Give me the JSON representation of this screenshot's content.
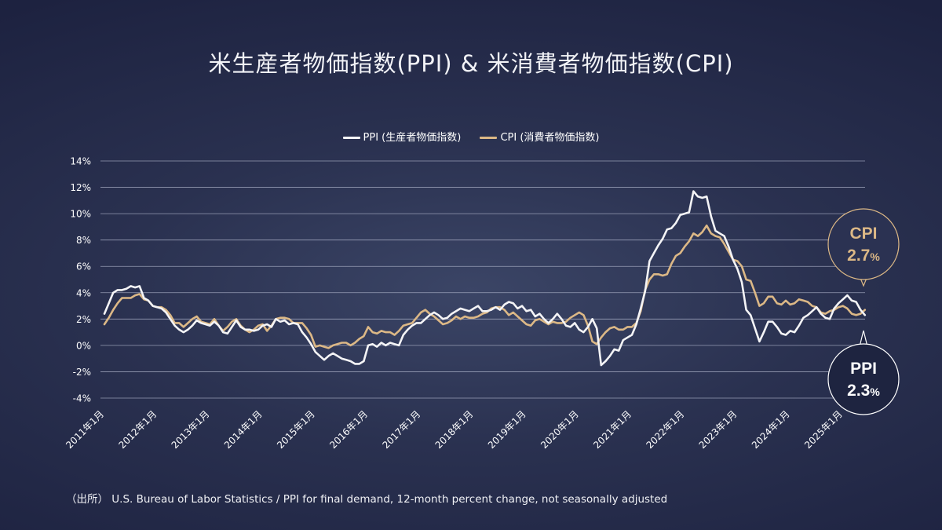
{
  "title": "米生産者物価指数(PPI) & 米消費者物価指数(CPI)",
  "legend": {
    "ppi_label": "PPI (生産者物価指数)",
    "cpi_label": "CPI (消費者物価指数)"
  },
  "colors": {
    "ppi": "#f4f4f6",
    "cpi": "#dcb886",
    "grid": "#b9bfd4"
  },
  "source": "（出所）  U.S. Bureau of Labor Statistics / PPI for final demand, 12-month percent change, not seasonally adjusted",
  "callouts": {
    "cpi": {
      "name": "CPI",
      "value": "2.7",
      "unit": "%"
    },
    "ppi": {
      "name": "PPI",
      "value": "2.3",
      "unit": "%"
    }
  },
  "chart_data": {
    "type": "line",
    "title": "米生産者物価指数(PPI) & 米消費者物価指数(CPI)",
    "ylim": [
      -4,
      14
    ],
    "y_ticks": [
      "14%",
      "12%",
      "10%",
      "8%",
      "6%",
      "4%",
      "2%",
      "0%",
      "-2%",
      "-4%"
    ],
    "x_ticks": [
      "2011年1月",
      "2012年1月",
      "2013年1月",
      "2014年1月",
      "2015年1月",
      "2016年1月",
      "2017年1月",
      "2018年1月",
      "2019年1月",
      "2020年1月",
      "2021年1月",
      "2022年1月",
      "2023年1月",
      "2024年1月",
      "2025年1月"
    ],
    "x_start": "2011-01",
    "frequency": "monthly",
    "grid": "horizontal",
    "legend_position": "top-center",
    "series": [
      {
        "name": "PPI (生産者物価指数)",
        "values": [
          2.4,
          3.2,
          4.0,
          4.2,
          4.2,
          4.3,
          4.5,
          4.4,
          4.5,
          3.6,
          3.4,
          3.0,
          2.9,
          2.8,
          2.5,
          2.0,
          1.5,
          1.2,
          1.0,
          1.2,
          1.5,
          1.9,
          1.7,
          1.6,
          1.5,
          1.8,
          1.5,
          1.0,
          0.9,
          1.4,
          1.9,
          1.4,
          1.2,
          1.2,
          1.1,
          1.2,
          1.5,
          1.6,
          1.4,
          2.0,
          1.8,
          1.9,
          1.6,
          1.7,
          1.6,
          1.0,
          0.6,
          0.1,
          -0.5,
          -0.8,
          -1.1,
          -0.8,
          -0.6,
          -0.8,
          -1.0,
          -1.1,
          -1.2,
          -1.4,
          -1.4,
          -1.2,
          0.0,
          0.1,
          -0.1,
          0.2,
          0.0,
          0.2,
          0.1,
          0.0,
          0.8,
          1.2,
          1.5,
          1.7,
          1.7,
          2.0,
          2.3,
          2.5,
          2.3,
          2.0,
          2.1,
          2.4,
          2.6,
          2.8,
          2.7,
          2.6,
          2.8,
          3.0,
          2.6,
          2.6,
          2.7,
          2.9,
          2.7,
          3.1,
          3.3,
          3.2,
          2.8,
          3.0,
          2.6,
          2.7,
          2.2,
          2.4,
          2.0,
          1.7,
          2.0,
          2.4,
          2.0,
          1.5,
          1.4,
          1.7,
          1.2,
          1.0,
          1.4,
          2.0,
          1.3,
          -1.5,
          -1.2,
          -0.8,
          -0.3,
          -0.4,
          0.4,
          0.6,
          0.8,
          1.6,
          2.8,
          4.1,
          6.4,
          7.0,
          7.6,
          8.1,
          8.8,
          8.9,
          9.3,
          9.9,
          10.0,
          10.1,
          11.7,
          11.3,
          11.2,
          11.3,
          9.8,
          8.7,
          8.5,
          8.3,
          7.5,
          6.5,
          5.8,
          4.8,
          2.7,
          2.3,
          1.3,
          0.3,
          1.0,
          1.8,
          1.8,
          1.4,
          0.9,
          0.8,
          1.1,
          1.0,
          1.5,
          2.1,
          2.3,
          2.6,
          2.9,
          2.4,
          2.1,
          2.0,
          2.8,
          3.2,
          3.5,
          3.8,
          3.4,
          3.3,
          2.7,
          2.3
        ]
      },
      {
        "name": "CPI (消費者物価指数)",
        "values": [
          1.6,
          2.1,
          2.7,
          3.2,
          3.6,
          3.6,
          3.6,
          3.8,
          3.9,
          3.5,
          3.4,
          3.0,
          2.9,
          2.9,
          2.7,
          2.3,
          1.7,
          1.7,
          1.4,
          1.7,
          2.0,
          2.2,
          1.8,
          1.7,
          1.6,
          2.0,
          1.5,
          1.1,
          1.4,
          1.8,
          2.0,
          1.5,
          1.2,
          1.0,
          1.2,
          1.5,
          1.6,
          1.1,
          1.5,
          2.0,
          2.1,
          2.1,
          2.0,
          1.7,
          1.7,
          1.7,
          1.3,
          0.8,
          -0.1,
          0.0,
          -0.1,
          -0.2,
          0.0,
          0.1,
          0.2,
          0.2,
          0.0,
          0.2,
          0.5,
          0.7,
          1.4,
          1.0,
          0.9,
          1.1,
          1.0,
          1.0,
          0.8,
          1.1,
          1.5,
          1.6,
          1.7,
          2.1,
          2.5,
          2.7,
          2.4,
          2.2,
          1.9,
          1.6,
          1.7,
          1.9,
          2.2,
          2.0,
          2.2,
          2.1,
          2.1,
          2.2,
          2.4,
          2.5,
          2.8,
          2.9,
          2.9,
          2.7,
          2.3,
          2.5,
          2.2,
          1.9,
          1.6,
          1.5,
          1.9,
          2.0,
          1.8,
          1.6,
          1.8,
          1.7,
          1.7,
          1.8,
          2.1,
          2.3,
          2.5,
          2.3,
          1.5,
          0.3,
          0.1,
          0.6,
          1.0,
          1.3,
          1.4,
          1.2,
          1.2,
          1.4,
          1.4,
          1.7,
          2.6,
          4.2,
          5.0,
          5.4,
          5.4,
          5.3,
          5.4,
          6.2,
          6.8,
          7.0,
          7.5,
          7.9,
          8.5,
          8.3,
          8.6,
          9.1,
          8.5,
          8.3,
          8.2,
          7.7,
          7.1,
          6.5,
          6.4,
          6.0,
          5.0,
          4.9,
          4.0,
          3.0,
          3.2,
          3.7,
          3.7,
          3.2,
          3.1,
          3.4,
          3.1,
          3.2,
          3.5,
          3.4,
          3.3,
          3.0,
          2.9,
          2.5,
          2.4,
          2.6,
          2.7,
          2.9,
          3.0,
          2.8,
          2.4,
          2.3,
          2.4,
          2.7
        ]
      }
    ]
  }
}
